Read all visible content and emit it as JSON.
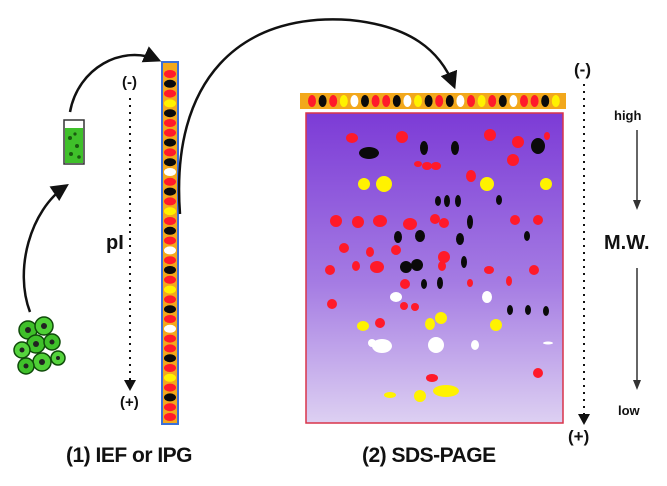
{
  "labels": {
    "step1": "(1) IEF or IPG",
    "step2": "(2) SDS-PAGE",
    "ief_top": "(-)",
    "ief_bottom": "(+)",
    "pi": "pI",
    "sds_top": "(-)",
    "sds_bottom": "(+)",
    "mw_high": "high",
    "mw_low": "low",
    "mw": "M.W."
  },
  "colors": {
    "gel_top": "#7c3bd6",
    "gel_bottom": "#ddd0f2",
    "strip": "#f2a81c",
    "strip_border": "#3a6fd8",
    "spot_red": "#ff1a2a",
    "spot_black": "#0a0a0a",
    "spot_yellow": "#fff200",
    "spot_white": "#ffffff",
    "sample_green": "#3fc02a",
    "arrow": "#111111"
  }
}
